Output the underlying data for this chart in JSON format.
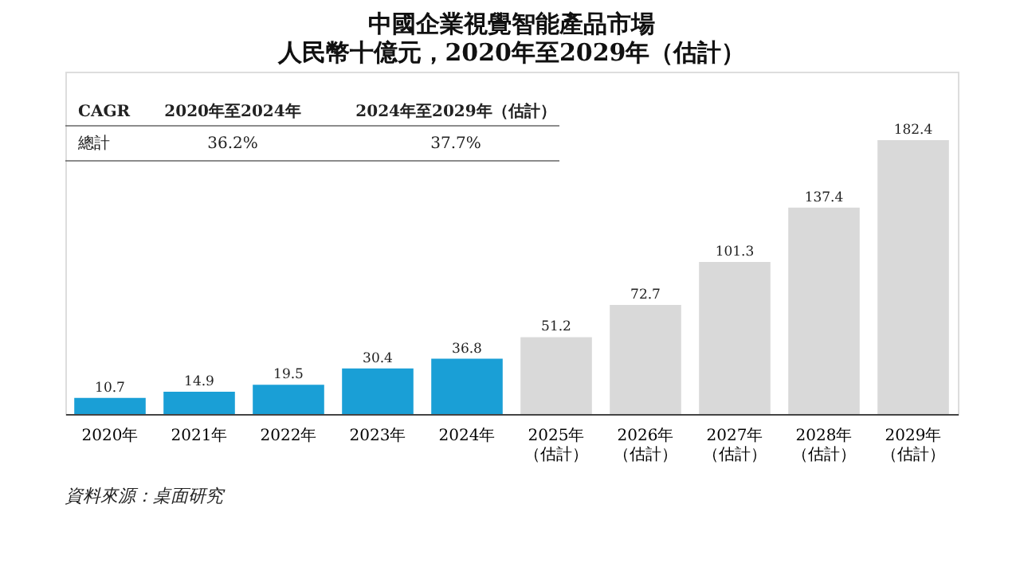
{
  "chart_data": {
    "type": "bar",
    "title": "中國企業視覺智能產品市場",
    "subtitle": "人民幣十億元，2020年至2029年（估計）",
    "categories": [
      "2020年",
      "2021年",
      "2022年",
      "2023年",
      "2024年",
      "2025年（估計）",
      "2026年（估計）",
      "2027年（估計）",
      "2028年（估計）",
      "2029年（估計）"
    ],
    "values": [
      10.7,
      14.9,
      19.5,
      30.4,
      36.8,
      51.2,
      72.7,
      101.3,
      137.4,
      182.4
    ],
    "colors": [
      "#1a9fd6",
      "#1a9fd6",
      "#1a9fd6",
      "#1a9fd6",
      "#1a9fd6",
      "#d9d9d9",
      "#d9d9d9",
      "#d9d9d9",
      "#d9d9d9",
      "#d9d9d9"
    ],
    "data_labels": true,
    "grid": false,
    "annotations": [
      "CAGR",
      "2020年至2024年",
      "2024年至2029年（估計）",
      "總計",
      "36.2%",
      "37.7%",
      "資料來源：桌面研究"
    ]
  }
}
